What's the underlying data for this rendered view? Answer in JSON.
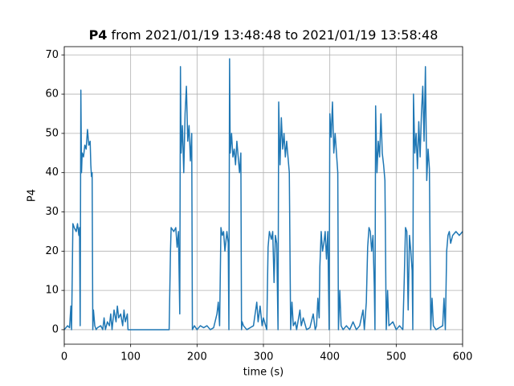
{
  "chart_data": {
    "type": "line",
    "title": [
      "P4",
      "from 2021/01/19 13:48:48 to 2021/01/19 13:58:48"
    ],
    "xlabel": "time (s)",
    "ylabel": "P4",
    "color": "#1f77b4",
    "grid": true,
    "xlim": [
      0,
      600
    ],
    "xticks": [
      0,
      100,
      200,
      300,
      400,
      500,
      600
    ],
    "ylim": [
      -3.7,
      72.1
    ],
    "yticks": [
      0,
      10,
      20,
      30,
      40,
      50,
      60,
      70
    ],
    "x": [
      0,
      5,
      8,
      10,
      11,
      12,
      13,
      15,
      18,
      20,
      22,
      23,
      24,
      25,
      26,
      27,
      29,
      31,
      33,
      35,
      37,
      39,
      40,
      41,
      42,
      43,
      44,
      46,
      48,
      50,
      55,
      58,
      60,
      62,
      65,
      68,
      70,
      72,
      75,
      78,
      80,
      82,
      85,
      88,
      90,
      92,
      95,
      96,
      120,
      158,
      159,
      160,
      161,
      165,
      168,
      170,
      172,
      174,
      175,
      176,
      178,
      180,
      182,
      184,
      186,
      188,
      190,
      192,
      193,
      196,
      200,
      205,
      210,
      215,
      220,
      225,
      230,
      232,
      234,
      236,
      238,
      240,
      242,
      245,
      247,
      248,
      249,
      250,
      252,
      254,
      256,
      258,
      260,
      262,
      264,
      266,
      267,
      268,
      270,
      275,
      280,
      285,
      290,
      292,
      295,
      298,
      300,
      305,
      307,
      309,
      312,
      314,
      316,
      318,
      320,
      322,
      323,
      325,
      327,
      329,
      331,
      333,
      335,
      337,
      339,
      341,
      343,
      345,
      348,
      350,
      355,
      357,
      360,
      365,
      370,
      375,
      378,
      380,
      382,
      384,
      385,
      387,
      389,
      391,
      393,
      395,
      397,
      398,
      399,
      400,
      402,
      404,
      406,
      408,
      410,
      412,
      413,
      415,
      417,
      420,
      425,
      430,
      435,
      440,
      445,
      450,
      452,
      455,
      457,
      459,
      461,
      463,
      465,
      467,
      468,
      469,
      471,
      473,
      475,
      477,
      479,
      481,
      483,
      485,
      487,
      489,
      495,
      500,
      505,
      510,
      512,
      514,
      516,
      518,
      520,
      522,
      524,
      525,
      526,
      528,
      530,
      532,
      534,
      536,
      538,
      540,
      542,
      544,
      546,
      548,
      550,
      552,
      554,
      556,
      560,
      565,
      570,
      572,
      574,
      576,
      578,
      580,
      582,
      585,
      590,
      595,
      600
    ],
    "values": [
      0,
      1,
      0.5,
      6,
      0,
      13,
      27,
      26,
      25,
      27,
      24,
      26,
      1,
      61,
      40,
      45,
      44,
      47,
      46,
      51,
      47,
      48,
      42,
      39,
      40,
      0,
      5,
      1,
      0,
      0.5,
      1,
      0,
      3,
      0,
      2,
      1,
      4,
      0,
      5,
      2,
      6,
      3,
      4,
      1,
      5,
      2,
      4,
      0,
      0,
      0,
      10,
      20,
      26,
      25,
      26,
      21,
      25,
      4,
      67,
      45,
      52,
      40,
      55,
      62,
      48,
      52,
      43,
      50,
      0,
      1,
      0,
      1,
      0.5,
      1,
      0,
      0.5,
      4,
      7,
      1,
      26,
      24,
      25,
      20,
      25,
      22,
      0,
      69,
      45,
      50,
      44,
      46,
      42,
      48,
      44,
      40,
      45,
      0,
      2,
      1,
      0,
      0.5,
      1,
      7,
      2,
      6,
      1,
      3,
      0,
      21,
      25,
      23,
      25,
      12,
      24,
      22,
      0,
      58,
      42,
      54,
      46,
      50,
      44,
      48,
      44,
      40,
      0,
      7,
      1,
      2,
      0,
      5,
      1,
      3,
      0,
      0.5,
      4,
      0,
      1,
      8,
      3,
      16,
      25,
      20,
      22,
      25,
      18,
      25,
      12,
      0,
      55,
      49,
      58,
      45,
      50,
      45,
      40,
      0,
      10,
      1,
      0,
      1,
      0,
      2,
      0,
      1,
      5,
      0,
      7,
      21,
      26,
      25,
      20,
      24,
      11,
      0,
      57,
      40,
      48,
      44,
      55,
      45,
      42,
      38,
      0,
      10,
      1,
      2,
      0,
      1,
      0,
      12,
      26,
      25,
      5,
      24,
      20,
      15,
      0,
      60,
      45,
      50,
      41,
      53,
      44,
      55,
      62,
      48,
      67,
      38,
      46,
      41,
      0,
      8,
      1,
      0,
      0.5,
      1,
      8,
      0,
      20,
      24,
      25,
      22,
      24,
      25,
      24,
      25
    ]
  }
}
